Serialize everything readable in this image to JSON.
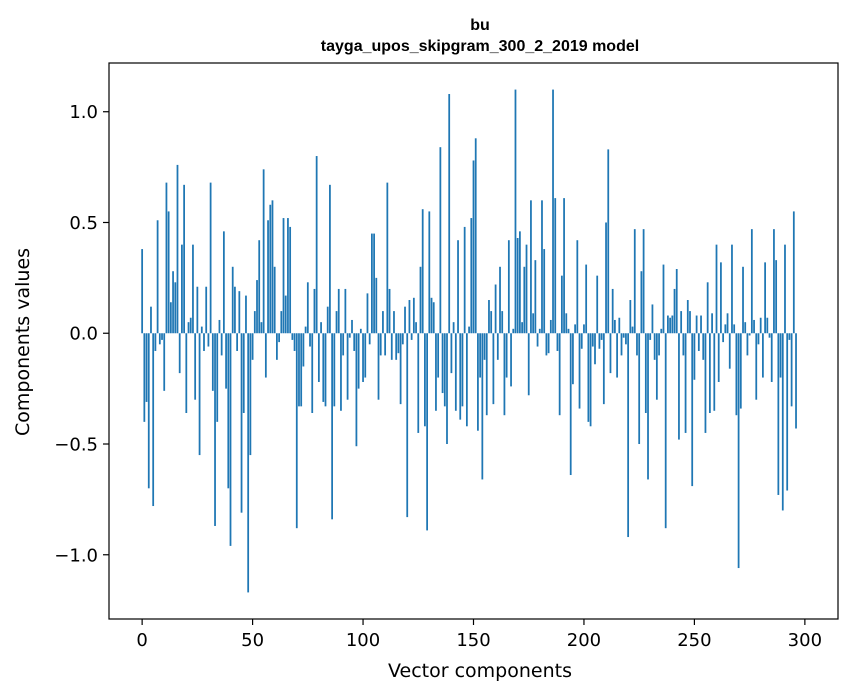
{
  "chart_data": {
    "type": "bar",
    "title": "bu",
    "subtitle": "tayga_upos_skipgram_300_2_2019 model",
    "xlabel": "Vector components",
    "ylabel": "Components values",
    "xlim": [
      -15,
      315
    ],
    "ylim": [
      -1.29,
      1.22
    ],
    "xticks": [
      0,
      50,
      100,
      150,
      200,
      250,
      300
    ],
    "xtick_labels": [
      "0",
      "50",
      "100",
      "150",
      "200",
      "250",
      "300"
    ],
    "yticks": [
      -1.0,
      -0.5,
      0.0,
      0.5,
      1.0
    ],
    "ytick_labels": [
      "−1.0",
      "−0.5",
      "0.0",
      "0.5",
      "1.0"
    ],
    "bar_color": "#1f77b4",
    "values": [
      0.38,
      -0.4,
      -0.31,
      -0.7,
      0.12,
      -0.78,
      -0.08,
      0.51,
      -0.05,
      -0.03,
      -0.26,
      0.68,
      0.55,
      0.14,
      0.28,
      0.23,
      0.76,
      -0.18,
      0.4,
      0.67,
      -0.36,
      0.05,
      0.07,
      0.4,
      -0.3,
      0.21,
      -0.55,
      0.03,
      -0.08,
      0.21,
      -0.06,
      0.68,
      -0.26,
      -0.87,
      -0.4,
      0.06,
      -0.1,
      0.46,
      -0.25,
      -0.7,
      -0.96,
      0.3,
      0.21,
      -0.08,
      0.19,
      -0.81,
      -0.36,
      0.17,
      -1.17,
      -0.55,
      -0.12,
      0.1,
      0.24,
      0.42,
      0.05,
      0.74,
      -0.2,
      0.51,
      0.58,
      0.6,
      0.3,
      -0.12,
      -0.04,
      0.1,
      0.52,
      0.17,
      0.52,
      0.48,
      -0.03,
      -0.08,
      -0.88,
      -0.33,
      -0.33,
      -0.15,
      0.03,
      0.23,
      -0.06,
      -0.36,
      0.2,
      0.8,
      -0.22,
      0.05,
      -0.31,
      -0.33,
      0.12,
      0.67,
      -0.84,
      -0.33,
      0.1,
      0.2,
      -0.35,
      -0.1,
      0.2,
      -0.3,
      -0.02,
      0.06,
      -0.08,
      -0.51,
      -0.25,
      0.02,
      -0.22,
      -0.2,
      0.18,
      -0.05,
      0.45,
      0.45,
      0.25,
      -0.3,
      -0.1,
      0.1,
      -0.1,
      0.68,
      0.2,
      -0.12,
      0.1,
      -0.12,
      -0.09,
      -0.32,
      -0.05,
      0.12,
      -0.83,
      0.15,
      -0.03,
      0.16,
      0.05,
      -0.45,
      0.3,
      0.56,
      -0.42,
      -0.89,
      0.55,
      0.16,
      0.14,
      -0.35,
      -0.2,
      0.84,
      -0.27,
      -0.33,
      -0.5,
      1.08,
      -0.18,
      0.05,
      -0.35,
      0.42,
      -0.39,
      -0.33,
      0.48,
      -0.42,
      0.03,
      0.52,
      0.78,
      0.88,
      -0.44,
      -0.2,
      -0.66,
      -0.12,
      -0.37,
      0.15,
      0.1,
      -0.32,
      0.22,
      -0.12,
      0.3,
      0.1,
      -0.37,
      -0.2,
      0.42,
      -0.24,
      0.02,
      1.1,
      0.43,
      0.46,
      0.05,
      0.3,
      0.4,
      -0.28,
      0.6,
      0.09,
      0.33,
      -0.06,
      0.02,
      0.6,
      0.38,
      -0.1,
      -0.09,
      0.06,
      1.1,
      0.61,
      -0.08,
      -0.37,
      0.26,
      0.61,
      0.09,
      0.02,
      -0.64,
      -0.23,
      0.04,
      0.42,
      -0.34,
      -0.07,
      0.04,
      0.31,
      -0.4,
      -0.42,
      -0.06,
      -0.14,
      0.26,
      -0.07,
      -0.03,
      -0.32,
      0.5,
      0.83,
      -0.18,
      0.2,
      0.06,
      -0.2,
      0.07,
      -0.1,
      -0.02,
      -0.05,
      -0.92,
      0.15,
      0.03,
      0.47,
      -0.1,
      -0.5,
      0.28,
      0.47,
      -0.36,
      -0.66,
      -0.03,
      0.13,
      -0.12,
      -0.3,
      -0.1,
      0.02,
      0.31,
      -0.88,
      0.08,
      0.07,
      0.08,
      0.2,
      0.29,
      -0.48,
      0.1,
      -0.1,
      -0.45,
      0.15,
      0.1,
      -0.69,
      -0.21,
      0.08,
      -0.08,
      0.08,
      -0.12,
      -0.45,
      0.23,
      -0.36,
      0.09,
      -0.35,
      0.4,
      -0.22,
      0.32,
      -0.04,
      0.04,
      0.09,
      -0.16,
      0.4,
      0.04,
      -0.37,
      -1.06,
      -0.34,
      0.3,
      0.05,
      -0.1,
      -0.01,
      0.47,
      0.06,
      -0.3,
      -0.05,
      0.07,
      -0.2,
      0.32,
      0.07,
      -0.02,
      -0.22,
      0.47,
      0.33,
      -0.73,
      -0.2,
      -0.8,
      0.4,
      -0.71,
      -0.03,
      -0.33,
      0.55,
      -0.43
    ]
  }
}
